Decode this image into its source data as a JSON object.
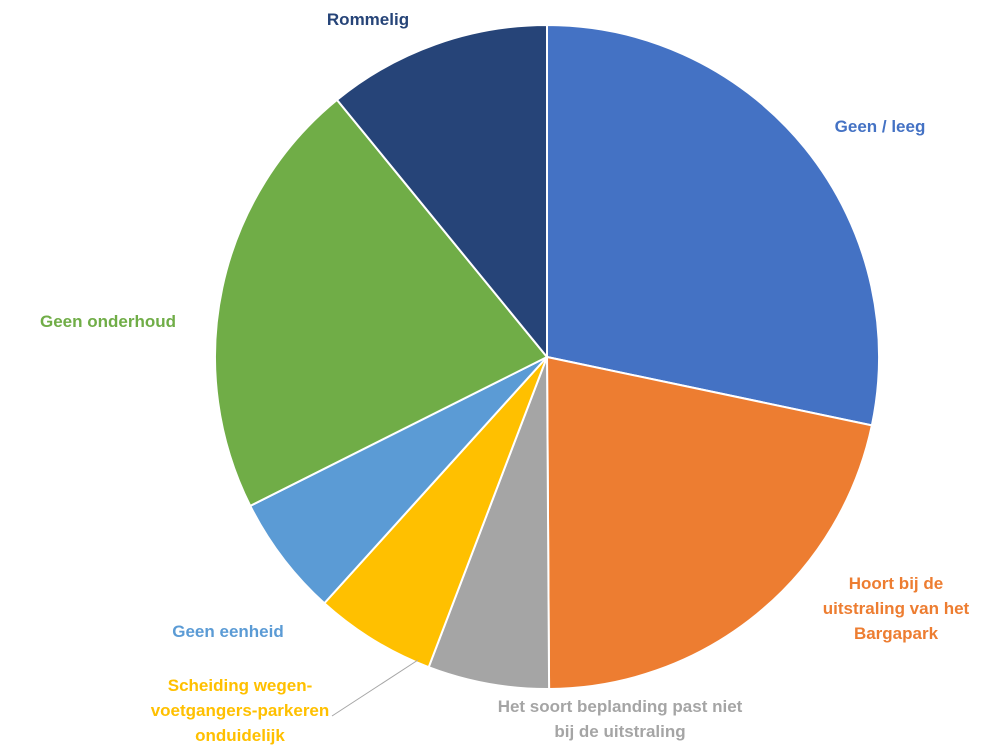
{
  "chart_data": {
    "type": "pie",
    "title": "",
    "series": [
      {
        "label": "Geen / leeg",
        "value": 28.3,
        "color": "#4472C4"
      },
      {
        "label": "Hoort bij de uitstraling van het Bargapark",
        "value": 21.6,
        "color": "#ED7D31"
      },
      {
        "label": "Het soort beplanding past niet bij de uitstraling",
        "value": 5.9,
        "color": "#A5A5A5"
      },
      {
        "label": "Scheiding wegen-voetgangers-parkeren onduidelijk",
        "value": 5.9,
        "color": "#FFC000"
      },
      {
        "label": "Geen eenheid",
        "value": 5.9,
        "color": "#5B9BD5"
      },
      {
        "label": "Geen onderhoud",
        "value": 21.5,
        "color": "#70AD47"
      },
      {
        "label": "Rommelig",
        "value": 10.9,
        "color": "#264478"
      }
    ],
    "data_labels": [
      {
        "lines": [
          "Geen / leeg"
        ],
        "color": "#4472C4"
      },
      {
        "lines": [
          "Hoort bij de",
          "uitstraling van het",
          "Bargapark"
        ],
        "color": "#ED7D31"
      },
      {
        "lines": [
          "Het soort beplanding past niet",
          "bij de uitstraling"
        ],
        "color": "#A5A5A5"
      },
      {
        "lines": [
          "Scheiding wegen-",
          "voetgangers-parkeren",
          "onduidelijk"
        ],
        "color": "#FFC000"
      },
      {
        "lines": [
          "Geen eenheid"
        ],
        "color": "#5B9BD5"
      },
      {
        "lines": [
          "Geen onderhoud"
        ],
        "color": "#70AD47"
      },
      {
        "lines": [
          "Rommelig"
        ],
        "color": "#264478"
      }
    ],
    "legend": "none"
  }
}
